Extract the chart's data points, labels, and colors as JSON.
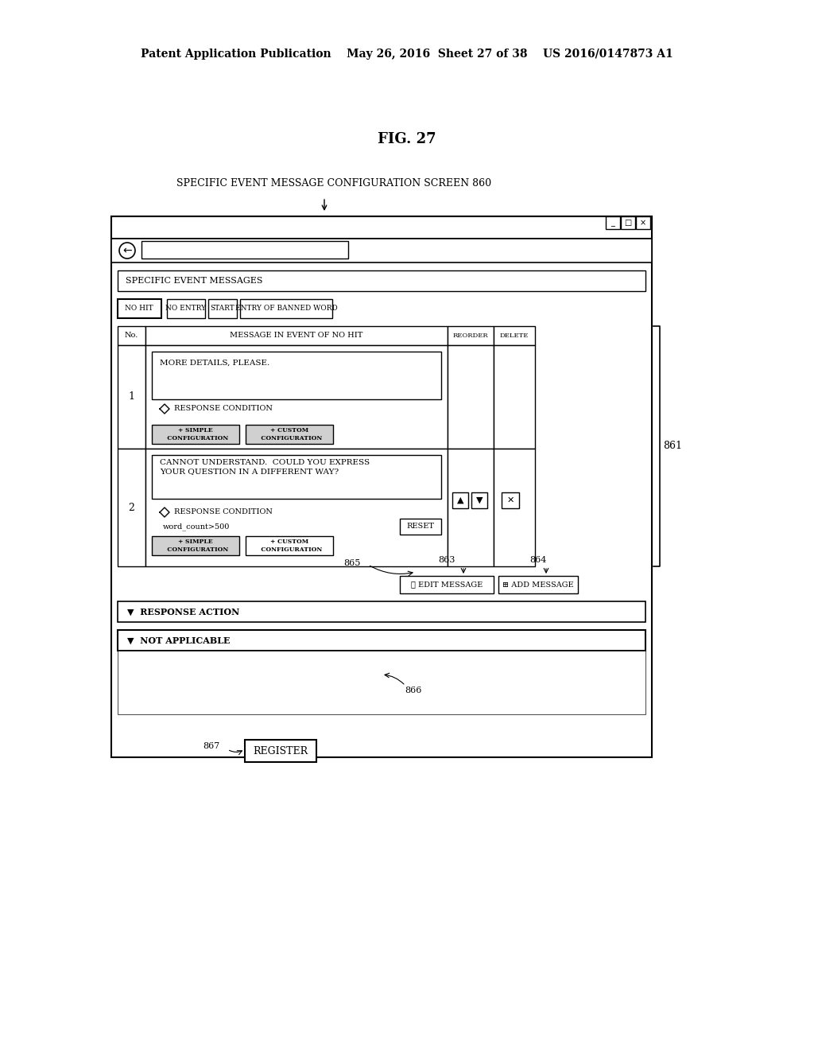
{
  "bg_color": "#ffffff",
  "header_text": "Patent Application Publication    May 26, 2016  Sheet 27 of 38    US 2016/0147873 A1",
  "fig_label": "FIG. 27",
  "screen_label": "SPECIFIC EVENT MESSAGE CONFIGURATION SCREEN 860",
  "tab_labels": [
    "NO HIT",
    "NO ENTRY",
    "START",
    "ENTRY OF BANNED WORD"
  ],
  "col_headers": [
    "No.",
    "MESSAGE IN EVENT OF NO HIT",
    "REORDER",
    "DELETE"
  ],
  "row1_msg": "MORE DETAILS, PLEASE.",
  "row1_num": "1",
  "row2_msg": "CANNOT UNDERSTAND.  COULD YOU EXPRESS\nYOUR QUESTION IN A DIFFERENT WAY?",
  "row2_num": "2",
  "response_condition": "RESPONSE CONDITION",
  "word_count_cond": "word_count>500",
  "btn_simple": "+ SIMPLE\n  CONFIGURATION",
  "btn_custom": "+ CUSTOM\n  CONFIGURATION",
  "btn_reset": "RESET",
  "btn_edit": "✓ EDIT MESSAGE",
  "btn_add": "+ ADD MESSAGE",
  "response_action": "▼  RESPONSE ACTION",
  "not_applicable": "▼  NOT APPLICABLE",
  "btn_register": "REGISTER",
  "label_863": "863",
  "label_864": "864",
  "label_865": "865",
  "label_866": "866",
  "label_867": "867",
  "label_861": "861"
}
